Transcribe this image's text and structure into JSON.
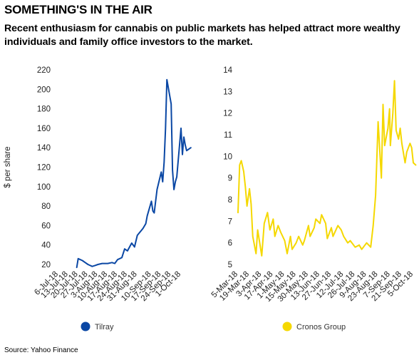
{
  "header": {
    "title": "SOMETHING'S IN THE AIR",
    "subtitle": "Recent enthusiasm for cannabis on public markets has helped attract more wealthy individuals and family office investors to the market."
  },
  "footer": {
    "source": "Source: Yahoo Finance"
  },
  "chart_data": [
    {
      "type": "line",
      "ylabel": "$ per share",
      "ylim": [
        20,
        220
      ],
      "yticks": [
        20,
        40,
        60,
        80,
        100,
        120,
        140,
        160,
        180,
        200,
        220
      ],
      "grid": false,
      "legend": "bottom",
      "color": "#0a47a4",
      "categories": [
        "6-Jul-18",
        "13-Jul-18",
        "20-Jul-18",
        "27-Jul-18",
        "3-Aug-18",
        "10-Aug-18",
        "17-Aug-18",
        "24-Aug-18",
        "31-Aug-18",
        "10-Sep-18",
        "17-Sep-18",
        "24-Sep-18",
        "1-Oct-18"
      ],
      "series": [
        {
          "name": "Tilray",
          "x": [
            "19-Jul-18",
            "20-Jul-18",
            "23-Jul-18",
            "25-Jul-18",
            "27-Jul-18",
            "30-Jul-18",
            "1-Aug-18",
            "3-Aug-18",
            "6-Aug-18",
            "8-Aug-18",
            "10-Aug-18",
            "13-Aug-18",
            "15-Aug-18",
            "17-Aug-18",
            "20-Aug-18",
            "22-Aug-18",
            "24-Aug-18",
            "27-Aug-18",
            "29-Aug-18",
            "31-Aug-18",
            "4-Sep-18",
            "6-Sep-18",
            "7-Sep-18",
            "10-Sep-18",
            "11-Sep-18",
            "12-Sep-18",
            "13-Sep-18",
            "14-Sep-18",
            "17-Sep-18",
            "18-Sep-18",
            "19-Sep-18",
            "20-Sep-18",
            "21-Sep-18",
            "24-Sep-18",
            "25-Sep-18",
            "26-Sep-18",
            "27-Sep-18",
            "28-Sep-18",
            "1-Oct-18",
            "2-Oct-18",
            "3-Oct-18",
            "4-Oct-18",
            "5-Oct-18",
            "8-Oct-18"
          ],
          "values": [
            17,
            26,
            24,
            22,
            20,
            18,
            19,
            20,
            21,
            21,
            21,
            22,
            21,
            25,
            27,
            36,
            34,
            42,
            38,
            50,
            57,
            62,
            70,
            85,
            75,
            73,
            85,
            97,
            115,
            105,
            125,
            160,
            210,
            185,
            117,
            97,
            105,
            110,
            160,
            133,
            151,
            143,
            137,
            140
          ]
        }
      ]
    },
    {
      "type": "line",
      "ylabel": "",
      "ylim": [
        5,
        14
      ],
      "yticks": [
        5,
        6,
        7,
        8,
        9,
        10,
        11,
        12,
        13,
        14
      ],
      "grid": false,
      "legend": "bottom",
      "color": "#f5d800",
      "categories": [
        "5-Mar-18",
        "19-Mar-18",
        "3-Apr-18",
        "17-Apr-18",
        "1-May-18",
        "15-May-18",
        "30-May-18",
        "13-Jun-18",
        "27-Jun-18",
        "12-Jul-18",
        "26-Jul-18",
        "9-Aug-18",
        "23-Aug-18",
        "7-Sep-18",
        "21-Sep-18",
        "5-Oct-18"
      ],
      "series": [
        {
          "name": "Cronos Group",
          "x": [
            "5-Mar-18",
            "7-Mar-18",
            "9-Mar-18",
            "12-Mar-18",
            "14-Mar-18",
            "16-Mar-18",
            "19-Mar-18",
            "21-Mar-18",
            "23-Mar-18",
            "27-Mar-18",
            "29-Mar-18",
            "3-Apr-18",
            "6-Apr-18",
            "10-Apr-18",
            "13-Apr-18",
            "17-Apr-18",
            "19-Apr-18",
            "23-Apr-18",
            "26-Apr-18",
            "1-May-18",
            "4-May-18",
            "8-May-18",
            "10-May-18",
            "15-May-18",
            "18-May-18",
            "23-May-18",
            "25-May-18",
            "30-May-18",
            "1-Jun-18",
            "6-Jun-18",
            "8-Jun-18",
            "13-Jun-18",
            "15-Jun-18",
            "20-Jun-18",
            "22-Jun-18",
            "27-Jun-18",
            "29-Jun-18",
            "5-Jul-18",
            "9-Jul-18",
            "12-Jul-18",
            "17-Jul-18",
            "20-Jul-18",
            "26-Jul-18",
            "31-Jul-18",
            "3-Aug-18",
            "9-Aug-18",
            "14-Aug-18",
            "17-Aug-18",
            "20-Aug-18",
            "23-Aug-18",
            "27-Aug-18",
            "29-Aug-18",
            "31-Aug-18",
            "4-Sep-18",
            "6-Sep-18",
            "7-Sep-18",
            "10-Sep-18",
            "12-Sep-18",
            "14-Sep-18",
            "17-Sep-18",
            "19-Sep-18",
            "21-Sep-18",
            "25-Sep-18",
            "27-Sep-18",
            "1-Oct-18",
            "3-Oct-18",
            "5-Oct-18",
            "8-Oct-18"
          ],
          "values": [
            7.4,
            9.6,
            9.8,
            9.3,
            8.6,
            7.7,
            8.5,
            7.8,
            6.3,
            5.5,
            6.6,
            5.4,
            6.9,
            7.4,
            6.6,
            7.1,
            6.3,
            6.8,
            6.5,
            6.1,
            5.5,
            6.3,
            5.7,
            6.0,
            6.3,
            5.9,
            6.1,
            6.8,
            6.3,
            6.7,
            7.1,
            6.9,
            7.3,
            6.9,
            6.2,
            6.7,
            6.3,
            6.8,
            6.6,
            6.3,
            6.0,
            6.1,
            5.8,
            5.9,
            5.7,
            6.0,
            5.8,
            6.8,
            8.2,
            11.6,
            9.0,
            12.4,
            10.5,
            11.3,
            12.2,
            10.5,
            12.0,
            13.5,
            11.2,
            10.8,
            11.3,
            10.6,
            9.7,
            10.2,
            10.6,
            10.4,
            9.7,
            9.6
          ]
        }
      ]
    }
  ]
}
